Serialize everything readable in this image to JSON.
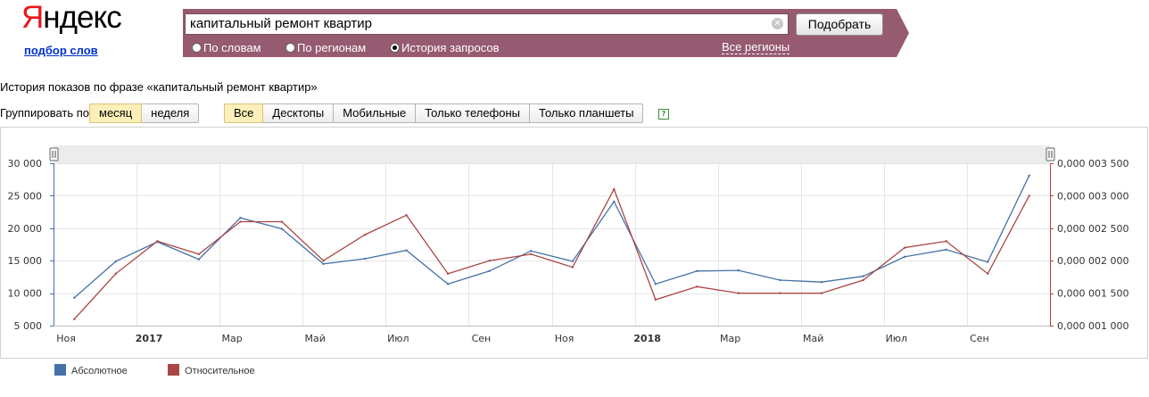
{
  "header": {
    "logo_first": "Я",
    "logo_rest": "ндекс",
    "logo_sub": "подбор слов"
  },
  "search": {
    "query": "капитальный ремонт квартир",
    "submit_label": "Подобрать",
    "clear_icon": "close-icon",
    "modes": [
      {
        "label": "По словам",
        "selected": false
      },
      {
        "label": "По регионам",
        "selected": false
      },
      {
        "label": "История запросов",
        "selected": true
      }
    ],
    "regions_link": "Все регионы"
  },
  "report": {
    "title": "История показов по фразе «капитальный ремонт квартир»",
    "group_label": "Группировать по:",
    "group_options": [
      {
        "label": "месяц",
        "active": true
      },
      {
        "label": "неделя",
        "active": false
      }
    ],
    "device_options": [
      {
        "label": "Все",
        "active": true
      },
      {
        "label": "Десктопы",
        "active": false
      },
      {
        "label": "Мобильные",
        "active": false
      },
      {
        "label": "Только телефоны",
        "active": false
      },
      {
        "label": "Только планшеты",
        "active": false
      }
    ],
    "help_icon": "?"
  },
  "colors": {
    "brand_red": "#e8171b",
    "band": "#965a71",
    "absolute": "#4572a7",
    "relative": "#aa4643"
  },
  "chart_data": {
    "type": "line",
    "x": [
      "2016-11",
      "2016-12",
      "2017-01",
      "2017-02",
      "2017-03",
      "2017-04",
      "2017-05",
      "2017-06",
      "2017-07",
      "2017-08",
      "2017-09",
      "2017-10",
      "2017-11",
      "2017-12",
      "2018-01",
      "2018-02",
      "2018-03",
      "2018-04",
      "2018-05",
      "2018-06",
      "2018-07",
      "2018-08",
      "2018-09",
      "2018-10"
    ],
    "x_tick_labels": [
      {
        "label": "Ноя",
        "x": "2016-11",
        "bold": false
      },
      {
        "label": "2017",
        "x": "2017-01",
        "bold": true
      },
      {
        "label": "Мар",
        "x": "2017-03",
        "bold": false
      },
      {
        "label": "Май",
        "x": "2017-05",
        "bold": false
      },
      {
        "label": "Июл",
        "x": "2017-07",
        "bold": false
      },
      {
        "label": "Сен",
        "x": "2017-09",
        "bold": false
      },
      {
        "label": "Ноя",
        "x": "2017-11",
        "bold": false
      },
      {
        "label": "2018",
        "x": "2018-01",
        "bold": true
      },
      {
        "label": "Мар",
        "x": "2018-03",
        "bold": false
      },
      {
        "label": "Май",
        "x": "2018-05",
        "bold": false
      },
      {
        "label": "Июл",
        "x": "2018-07",
        "bold": false
      },
      {
        "label": "Сен",
        "x": "2018-09",
        "bold": false
      }
    ],
    "series": [
      {
        "name": "Абсолютное",
        "axis": "left",
        "values": [
          9300,
          14900,
          17900,
          15200,
          21600,
          19900,
          14500,
          15300,
          16600,
          11400,
          13400,
          16500,
          14900,
          24100,
          11400,
          13400,
          13500,
          12000,
          11700,
          12600,
          15600,
          16700,
          14800,
          28100
        ]
      },
      {
        "name": "Относительное",
        "axis": "right",
        "values": [
          1.1e-06,
          1.8e-06,
          2.3e-06,
          2.1e-06,
          2.6e-06,
          2.6e-06,
          2e-06,
          2.4e-06,
          2.7e-06,
          1.8e-06,
          2e-06,
          2.1e-06,
          1.9e-06,
          3.1e-06,
          1.4e-06,
          1.6e-06,
          1.5e-06,
          1.5e-06,
          1.5e-06,
          1.7e-06,
          2.2e-06,
          2.3e-06,
          1.8e-06,
          3e-06
        ]
      }
    ],
    "y_left": {
      "min": 5000,
      "max": 30000,
      "ticks": [
        5000,
        10000,
        15000,
        20000,
        25000,
        30000
      ],
      "tick_labels": [
        "5 000",
        "10 000",
        "15 000",
        "20 000",
        "25 000",
        "30 000"
      ]
    },
    "y_right": {
      "min": 1e-06,
      "max": 3.5e-06,
      "ticks": [
        1e-06,
        1.5e-06,
        2e-06,
        2.5e-06,
        3e-06,
        3.5e-06
      ],
      "tick_labels": [
        "0,000 001 000",
        "0,000 001 500",
        "0,000 002 000",
        "0,000 002 500",
        "0,000 003 000",
        "0,000 003 500"
      ]
    },
    "grid": true,
    "legend": "bottom-left"
  }
}
